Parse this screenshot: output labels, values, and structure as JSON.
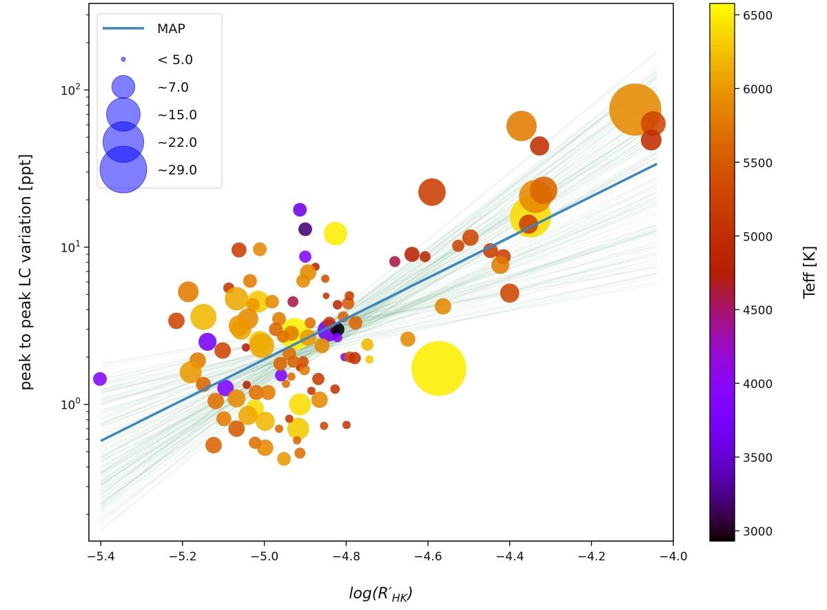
{
  "chart_data": {
    "type": "scatter",
    "title": "",
    "xlabel": "log(R'HK)",
    "xlabel_parts": {
      "main": "log(R",
      "prime": "′",
      "sub": "HK",
      "close": ")"
    },
    "ylabel": "peak to peak LC variation [ppt]",
    "xlim": [
      -5.429,
      -4.0
    ],
    "ylim": [
      0.135,
      355
    ],
    "yscale": "log",
    "x_ticks": [
      -5.4,
      -5.2,
      -5.0,
      -4.8,
      -4.6,
      -4.4,
      -4.2,
      -4.0
    ],
    "x_tick_labels": [
      "−5.4",
      "−5.2",
      "−5.0",
      "−4.8",
      "−4.6",
      "−4.4",
      "−4.2",
      "−4.0"
    ],
    "y_ticks": [
      1,
      10,
      100
    ],
    "y_tick_labels": [
      {
        "base": "10",
        "exp": "0"
      },
      {
        "base": "10",
        "exp": "1"
      },
      {
        "base": "10",
        "exp": "2"
      }
    ],
    "grid": false,
    "colorbar": {
      "label": "Teff [K]",
      "cmap": "gnuplot",
      "range": [
        2930,
        6577
      ],
      "ticks": [
        3000,
        3500,
        4000,
        4500,
        5000,
        5500,
        6000,
        6500
      ],
      "tick_labels": [
        "3000",
        "3500",
        "4000",
        "4500",
        "5000",
        "5500",
        "6000",
        "6500"
      ]
    },
    "legend": {
      "placement": "top-left",
      "items": [
        {
          "label": "MAP",
          "kind": "line",
          "color": "#3a86c0"
        },
        {
          "label": "< 5.0",
          "kind": "marker",
          "size": 0.2
        },
        {
          "label": "~7.0",
          "kind": "marker",
          "size": 7
        },
        {
          "label": "~15.0",
          "kind": "marker",
          "size": 15
        },
        {
          "label": "~22.0",
          "kind": "marker",
          "size": 22
        },
        {
          "label": "~29.0",
          "kind": "marker",
          "size": 29
        }
      ],
      "marker_color": "#0000ff"
    },
    "map_line": {
      "label": "MAP",
      "slope": 1.296,
      "intercept_log10": 6.766,
      "x_range": [
        -5.4,
        -4.04
      ],
      "color": "#3a86c0"
    },
    "posterior_lines": {
      "count": 120,
      "pivot_x": -4.85,
      "pivot_log10_y": 0.43,
      "slope_range": [
        0.45,
        2.15
      ],
      "x_range": [
        -5.4,
        -4.04
      ],
      "color": "#2e8b57"
    },
    "columns": [
      "logRHK",
      "ptp_ppt",
      "teff_K",
      "size"
    ],
    "points": [
      [
        -5.402,
        1.45,
        3900,
        2.5
      ],
      [
        -5.062,
        9.6,
        5200,
        3.0
      ],
      [
        -5.011,
        9.7,
        5900,
        2.5
      ],
      [
        -5.035,
        6.1,
        5800,
        2.5
      ],
      [
        -5.186,
        5.2,
        5800,
        5.7
      ],
      [
        -5.087,
        5.5,
        5100,
        1.6
      ],
      [
        -5.068,
        4.7,
        6100,
        7.3
      ],
      [
        -5.015,
        4.5,
        6300,
        6.4
      ],
      [
        -5.028,
        4.3,
        6000,
        2.5
      ],
      [
        -5.215,
        3.4,
        5300,
        3.6
      ],
      [
        -5.149,
        3.6,
        6200,
        9.1
      ],
      [
        -5.139,
        2.5,
        3700,
        4.3
      ],
      [
        -5.057,
        3.0,
        6100,
        5.7
      ],
      [
        -5.04,
        3.5,
        5900,
        5.7
      ],
      [
        -5.045,
        2.3,
        4700,
        0.9
      ],
      [
        -5.102,
        2.2,
        5300,
        3.6
      ],
      [
        -5.163,
        1.9,
        5800,
        3.6
      ],
      [
        -5.011,
        2.5,
        6300,
        6.4
      ],
      [
        -5.18,
        1.6,
        6000,
        6.4
      ],
      [
        -5.149,
        1.34,
        5600,
        3.0
      ],
      [
        -5.095,
        1.27,
        3800,
        3.6
      ],
      [
        -5.043,
        1.33,
        4800,
        0.9
      ],
      [
        -5.119,
        1.05,
        5700,
        3.6
      ],
      [
        -5.068,
        1.09,
        5900,
        4.3
      ],
      [
        -5.02,
        1.19,
        5700,
        3.0
      ],
      [
        -4.991,
        1.19,
        5800,
        3.0
      ],
      [
        -5.023,
        0.94,
        6400,
        4.3
      ],
      [
        -5.04,
        0.85,
        6100,
        4.9
      ],
      [
        -5.099,
        0.81,
        5800,
        3.0
      ],
      [
        -5.068,
        0.7,
        5500,
        3.6
      ],
      [
        -4.998,
        0.78,
        6200,
        4.9
      ],
      [
        -5.124,
        0.55,
        5600,
        3.6
      ],
      [
        -4.998,
        0.53,
        5900,
        3.6
      ],
      [
        -5.023,
        0.57,
        5700,
        2.0
      ],
      [
        -4.952,
        0.45,
        6000,
        2.5
      ],
      [
        -4.964,
        0.7,
        5600,
        0.9
      ],
      [
        -4.917,
        0.7,
        6300,
        6.4
      ],
      [
        -4.939,
        0.81,
        5100,
        0.9
      ],
      [
        -4.913,
        1.0,
        6400,
        6.4
      ],
      [
        -4.865,
        1.07,
        5900,
        3.6
      ],
      [
        -4.885,
        1.22,
        5100,
        0.9
      ],
      [
        -4.827,
        1.25,
        5100,
        1.2
      ],
      [
        -4.854,
        0.73,
        5300,
        0.9
      ],
      [
        -4.799,
        0.74,
        5100,
        0.9
      ],
      [
        -4.868,
        1.45,
        5200,
        2.0
      ],
      [
        -4.959,
        1.53,
        3800,
        2.0
      ],
      [
        -4.934,
        1.5,
        5700,
        0.9
      ],
      [
        -4.947,
        1.35,
        5700,
        0.9
      ],
      [
        -4.913,
        1.72,
        4800,
        0.9
      ],
      [
        -4.902,
        1.66,
        5800,
        1.6
      ],
      [
        -4.961,
        1.81,
        5600,
        2.5
      ],
      [
        -4.804,
        2.0,
        3900,
        0.9
      ],
      [
        -4.792,
        2.0,
        5400,
        1.6
      ],
      [
        -4.779,
        1.97,
        5000,
        2.0
      ],
      [
        -4.925,
        2.8,
        6500,
        13.3
      ],
      [
        -4.934,
        2.83,
        5800,
        3.0
      ],
      [
        -4.843,
        2.95,
        3700,
        6.4
      ],
      [
        -4.821,
        3.0,
        2900,
        2.5
      ],
      [
        -4.859,
        2.36,
        5900,
        3.0
      ],
      [
        -5.006,
        2.36,
        6100,
        8.2
      ],
      [
        -5.062,
        3.16,
        6000,
        5.7
      ],
      [
        -4.913,
        17.3,
        3600,
        2.5
      ],
      [
        -4.9,
        13.0,
        3200,
        2.5
      ],
      [
        -4.9,
        8.7,
        3900,
        2.0
      ],
      [
        -4.826,
        12.2,
        6500,
        7.3
      ],
      [
        -4.875,
        7.5,
        4800,
        0.9
      ],
      [
        -4.893,
        6.9,
        5900,
        3.6
      ],
      [
        -4.905,
        6.1,
        5900,
        2.5
      ],
      [
        -4.93,
        4.5,
        4600,
        1.6
      ],
      [
        -4.981,
        4.5,
        5900,
        2.5
      ],
      [
        -4.964,
        3.5,
        5800,
        2.5
      ],
      [
        -4.851,
        6.3,
        5400,
        0.9
      ],
      [
        -4.849,
        4.9,
        5100,
        0.6
      ],
      [
        -4.795,
        4.4,
        5500,
        2.0
      ],
      [
        -4.792,
        4.9,
        5200,
        1.2
      ],
      [
        -4.777,
        3.3,
        5600,
        2.5
      ],
      [
        -4.748,
        2.4,
        6200,
        2.0
      ],
      [
        -4.743,
        1.93,
        6300,
        0.9
      ],
      [
        -4.821,
        4.3,
        4900,
        1.2
      ],
      [
        -4.807,
        3.6,
        5600,
        1.6
      ],
      [
        -4.681,
        8.1,
        4600,
        1.6
      ],
      [
        -4.639,
        9.0,
        4800,
        3.0
      ],
      [
        -4.607,
        8.7,
        4900,
        1.6
      ],
      [
        -4.59,
        22.4,
        5200,
        10.0
      ],
      [
        -4.563,
        4.2,
        5900,
        3.6
      ],
      [
        -4.649,
        2.6,
        5900,
        3.0
      ],
      [
        -4.573,
        1.69,
        6500,
        40.0
      ],
      [
        -4.526,
        10.2,
        5300,
        2.0
      ],
      [
        -4.496,
        11.5,
        5300,
        3.6
      ],
      [
        -4.447,
        9.5,
        5200,
        3.0
      ],
      [
        -4.416,
        8.7,
        5200,
        3.0
      ],
      [
        -4.423,
        7.7,
        5800,
        4.3
      ],
      [
        -4.4,
        5.1,
        5300,
        4.9
      ],
      [
        -4.371,
        59,
        5800,
        12.2
      ],
      [
        -4.327,
        44,
        5000,
        4.9
      ],
      [
        -4.349,
        15.6,
        6400,
        22.7
      ],
      [
        -4.337,
        21,
        5900,
        14.5
      ],
      [
        -4.317,
        23,
        5600,
        10.0
      ],
      [
        -4.354,
        14,
        5200,
        4.9
      ],
      [
        -4.093,
        75,
        5900,
        36.0
      ],
      [
        -4.049,
        61,
        5300,
        8.2
      ],
      [
        -4.054,
        48,
        5000,
        5.7
      ],
      [
        -4.972,
        3.0,
        5600,
        2.5
      ],
      [
        -4.954,
        2.7,
        5700,
        2.0
      ],
      [
        -4.939,
        2.1,
        5700,
        2.5
      ],
      [
        -4.888,
        3.3,
        5700,
        1.6
      ],
      [
        -4.841,
        3.3,
        5100,
        2.0
      ],
      [
        -4.893,
        2.66,
        6000,
        3.6
      ],
      [
        -4.905,
        1.87,
        5400,
        1.6
      ],
      [
        -4.929,
        1.87,
        5600,
        2.0
      ],
      [
        -4.92,
        0.59,
        5600,
        0.9
      ],
      [
        -4.913,
        0.49,
        5700,
        1.6
      ],
      [
        -4.821,
        2.66,
        3900,
        1.2
      ]
    ]
  }
}
